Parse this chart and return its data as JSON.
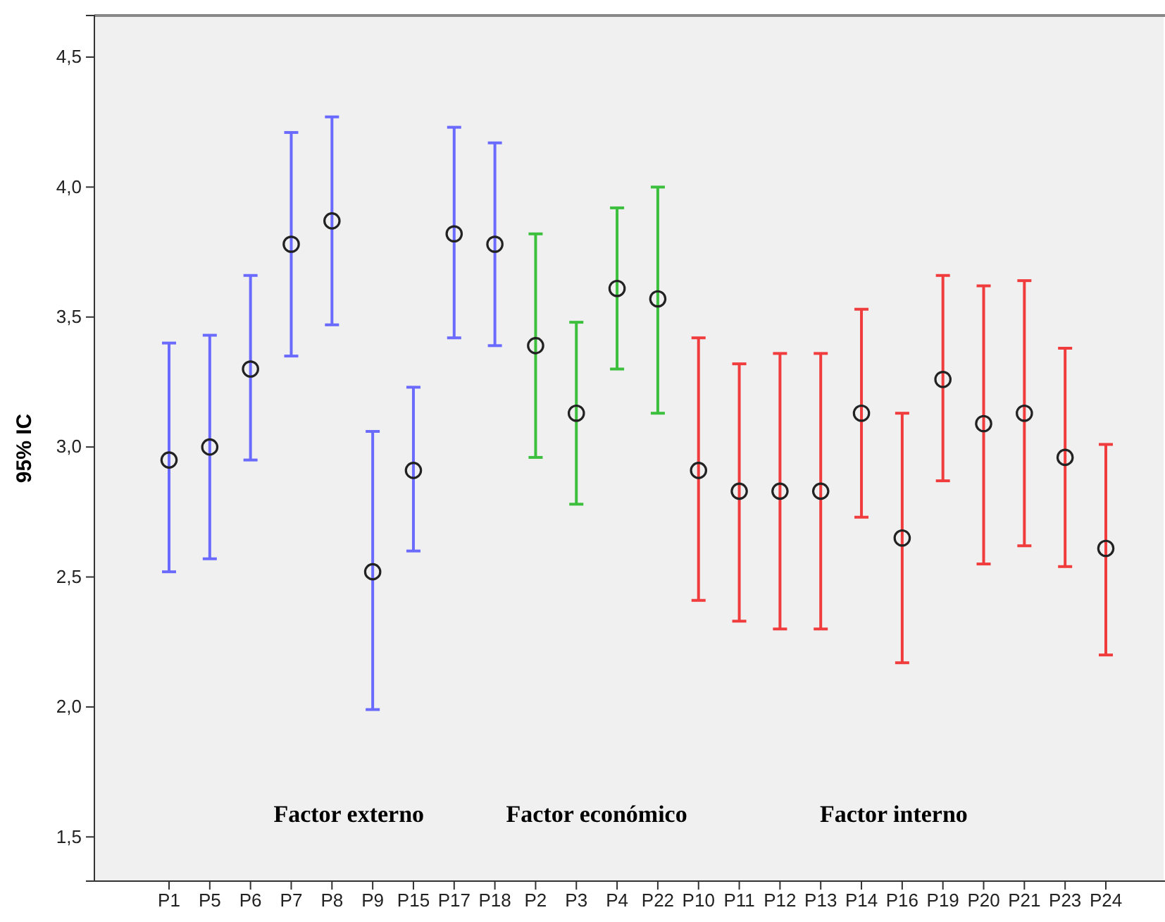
{
  "chart_data": {
    "type": "scatter",
    "ylabel": "95% IC",
    "categories": [
      "P1",
      "P5",
      "P6",
      "P7",
      "P8",
      "P9",
      "P15",
      "P17",
      "P18",
      "P2",
      "P3",
      "P4",
      "P22",
      "P10",
      "P11",
      "P12",
      "P13",
      "P14",
      "P16",
      "P19",
      "P20",
      "P21",
      "P23",
      "P24"
    ],
    "series": [
      {
        "color": "#6a6aff",
        "colors": [
          "#222222",
          "#222222",
          "#222222",
          "#222222",
          "#222222",
          "#222222",
          "#222222",
          "#222222",
          "#222222",
          null,
          null,
          null,
          null,
          null,
          null,
          null,
          null,
          null,
          null,
          null,
          null,
          null,
          null,
          null
        ],
        "values": [
          2.95,
          3.0,
          3.3,
          3.78,
          3.87,
          2.52,
          2.91,
          3.82,
          3.78,
          null,
          null,
          null,
          null,
          null,
          null,
          null,
          null,
          null,
          null,
          null,
          null,
          null,
          null,
          null
        ],
        "errors": [
          [
            2.52,
            3.4
          ],
          [
            2.57,
            3.43
          ],
          [
            2.95,
            3.66
          ],
          [
            3.35,
            4.21
          ],
          [
            3.47,
            4.27
          ],
          [
            1.99,
            3.06
          ],
          [
            2.6,
            3.23
          ],
          [
            3.42,
            4.23
          ],
          [
            3.39,
            4.17
          ],
          null,
          null,
          null,
          null,
          null,
          null,
          null,
          null,
          null,
          null,
          null,
          null,
          null,
          null,
          null
        ]
      },
      {
        "color": "#3cbf3c",
        "colors": [
          null,
          null,
          null,
          null,
          null,
          null,
          null,
          null,
          null,
          "#222222",
          "#222222",
          "#222222",
          "#222222",
          null,
          null,
          null,
          null,
          null,
          null,
          null,
          null,
          null,
          null,
          null
        ],
        "values": [
          null,
          null,
          null,
          null,
          null,
          null,
          null,
          null,
          null,
          3.39,
          3.13,
          3.61,
          3.57,
          null,
          null,
          null,
          null,
          null,
          null,
          null,
          null,
          null,
          null,
          null
        ],
        "errors": [
          null,
          null,
          null,
          null,
          null,
          null,
          null,
          null,
          null,
          [
            2.96,
            3.82
          ],
          [
            2.78,
            3.48
          ],
          [
            3.3,
            3.92
          ],
          [
            3.13,
            4.0
          ],
          null,
          null,
          null,
          null,
          null,
          null,
          null,
          null,
          null,
          null,
          null
        ]
      },
      {
        "color": "#f03c3c",
        "colors": [
          null,
          null,
          null,
          null,
          null,
          null,
          null,
          null,
          null,
          null,
          null,
          null,
          null,
          "#222222",
          "#222222",
          "#222222",
          "#222222",
          "#222222",
          "#222222",
          "#222222",
          "#222222",
          "#222222",
          "#222222",
          "#222222"
        ],
        "values": [
          null,
          null,
          null,
          null,
          null,
          null,
          null,
          null,
          null,
          null,
          null,
          null,
          null,
          2.91,
          2.83,
          2.83,
          2.83,
          3.13,
          2.65,
          3.26,
          3.09,
          3.13,
          2.96,
          2.61
        ],
        "errors": [
          null,
          null,
          null,
          null,
          null,
          null,
          null,
          null,
          null,
          null,
          null,
          null,
          null,
          [
            2.41,
            3.42
          ],
          [
            2.33,
            3.32
          ],
          [
            2.3,
            3.36
          ],
          [
            2.3,
            3.36
          ],
          [
            2.73,
            3.53
          ],
          [
            2.17,
            3.13
          ],
          [
            2.87,
            3.66
          ],
          [
            2.55,
            3.62
          ],
          [
            2.62,
            3.64
          ],
          [
            2.54,
            3.38
          ],
          [
            2.2,
            3.01
          ]
        ]
      }
    ],
    "annotations": [
      "Factor externo",
      "Factor económico",
      "Factor interno"
    ],
    "ylim": [
      1.33,
      4.66
    ],
    "yticks": [
      {
        "value": 1.5,
        "label": "1,5"
      },
      {
        "value": 2.0,
        "label": "2,0"
      },
      {
        "value": 2.5,
        "label": "2,5"
      },
      {
        "value": 3.0,
        "label": "3,0"
      },
      {
        "value": 3.5,
        "label": "3,5"
      },
      {
        "value": 4.0,
        "label": "4,0"
      },
      {
        "value": 4.5,
        "label": "4,5"
      }
    ],
    "marker": "circle",
    "grid": false
  }
}
